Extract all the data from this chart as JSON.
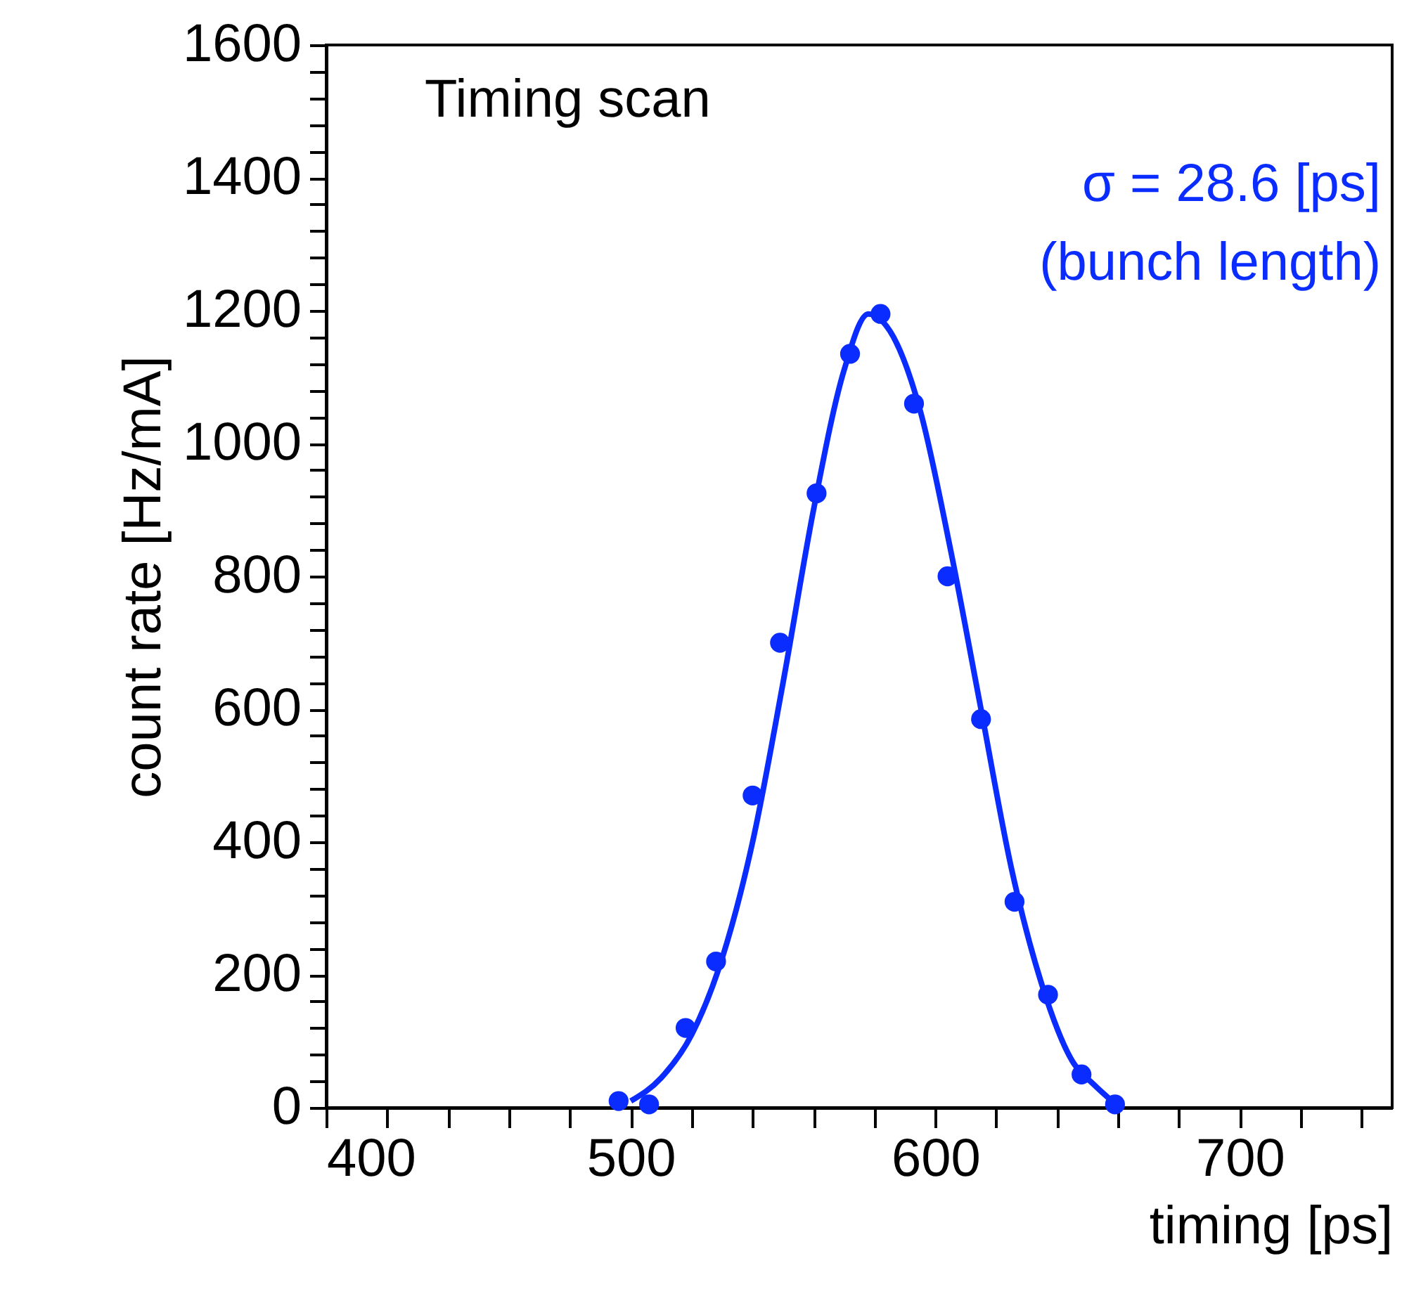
{
  "chart_data": {
    "type": "scatter",
    "xlabel": "timing [ps]",
    "ylabel": "count rate [Hz/mA]",
    "annotations": [
      "Timing scan",
      "σ = 28.6 [ps]",
      "(bunch length)"
    ],
    "xlim": [
      400,
      750
    ],
    "ylim": [
      0,
      1600
    ],
    "xticks": [
      400,
      {
        "value": 420,
        "label": null
      },
      {
        "value": 440,
        "label": null
      },
      {
        "value": 460,
        "label": null
      },
      {
        "value": 480,
        "label": null
      },
      500,
      {
        "value": 520,
        "label": null
      },
      {
        "value": 540,
        "label": null
      },
      {
        "value": 560,
        "label": null
      },
      {
        "value": 580,
        "label": null
      },
      600,
      {
        "value": 620,
        "label": null
      },
      {
        "value": 640,
        "label": null
      },
      {
        "value": 660,
        "label": null
      },
      {
        "value": 680,
        "label": null
      },
      700,
      {
        "value": 720,
        "label": null
      },
      {
        "value": 740,
        "label": null
      }
    ],
    "yticks": [
      0,
      {
        "value": 40,
        "label": null
      },
      {
        "value": 80,
        "label": null
      },
      {
        "value": 120,
        "label": null
      },
      {
        "value": 160,
        "label": null
      },
      200,
      {
        "value": 240,
        "label": null
      },
      {
        "value": 280,
        "label": null
      },
      {
        "value": 320,
        "label": null
      },
      {
        "value": 360,
        "label": null
      },
      400,
      {
        "value": 440,
        "label": null
      },
      {
        "value": 480,
        "label": null
      },
      {
        "value": 520,
        "label": null
      },
      {
        "value": 560,
        "label": null
      },
      600,
      {
        "value": 640,
        "label": null
      },
      {
        "value": 680,
        "label": null
      },
      {
        "value": 720,
        "label": null
      },
      {
        "value": 760,
        "label": null
      },
      800,
      {
        "value": 840,
        "label": null
      },
      {
        "value": 880,
        "label": null
      },
      {
        "value": 920,
        "label": null
      },
      {
        "value": 960,
        "label": null
      },
      1000,
      {
        "value": 1040,
        "label": null
      },
      {
        "value": 1080,
        "label": null
      },
      {
        "value": 1120,
        "label": null
      },
      {
        "value": 1160,
        "label": null
      },
      1200,
      {
        "value": 1240,
        "label": null
      },
      {
        "value": 1280,
        "label": null
      },
      {
        "value": 1320,
        "label": null
      },
      {
        "value": 1360,
        "label": null
      },
      1400,
      {
        "value": 1440,
        "label": null
      },
      {
        "value": 1480,
        "label": null
      },
      {
        "value": 1520,
        "label": null
      },
      {
        "value": 1560,
        "label": null
      },
      1600
    ],
    "grid": false,
    "series": [
      {
        "type": "scatter",
        "marker": "circle",
        "color": "#0a2cff",
        "x": [
          496,
          506,
          518,
          528,
          540,
          549,
          561,
          572,
          582,
          593,
          604,
          615,
          626,
          637,
          648,
          659
        ],
        "values": [
          10,
          5,
          120,
          220,
          470,
          700,
          925,
          1135,
          1195,
          1060,
          800,
          585,
          310,
          170,
          50,
          5
        ]
      },
      {
        "type": "line",
        "marker": "none",
        "line_style": "solid",
        "color": "#0a2cff",
        "x": [
          500,
          510,
          520,
          530,
          540,
          550,
          560,
          570,
          578,
          585,
          595,
          605,
          615,
          625,
          635,
          645,
          652,
          658
        ],
        "values": [
          10,
          45,
          110,
          225,
          400,
          640,
          900,
          1110,
          1195,
          1170,
          1050,
          840,
          600,
          360,
          185,
          70,
          35,
          10
        ]
      }
    ]
  }
}
